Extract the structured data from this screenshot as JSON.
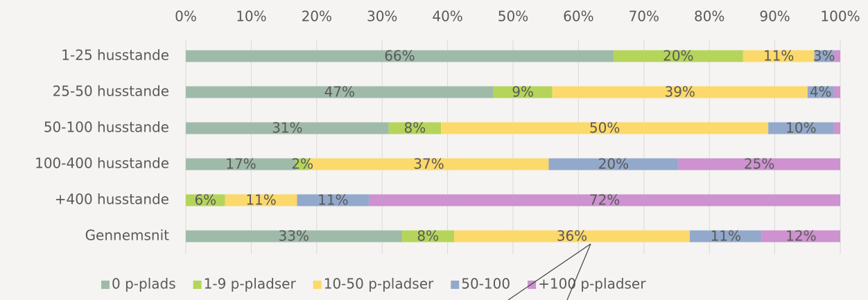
{
  "chart_data": {
    "type": "bar",
    "orientation": "horizontal",
    "stacking": "percent",
    "categories": [
      "1-25 husstande",
      "25-50 husstande",
      "50-100 husstande",
      "100-400 husstande",
      "+400 husstande",
      "Gennemsnit"
    ],
    "series": [
      {
        "name": "0 p-plads",
        "color": "#9fbaa9",
        "values": [
          66,
          47,
          31,
          17,
          0,
          33
        ],
        "value_labels": [
          "66%",
          "47%",
          "31%",
          "17%",
          null,
          "33%"
        ]
      },
      {
        "name": "1-9 p-pladser",
        "color": "#b5d55a",
        "values": [
          20,
          9,
          8,
          2,
          6,
          8
        ],
        "value_labels": [
          "20%",
          "9%",
          "8%",
          "2%",
          "6%",
          "8%"
        ]
      },
      {
        "name": "10-50 p-pladser",
        "color": "#fcd96b",
        "values": [
          11,
          39,
          50,
          37,
          11,
          36
        ],
        "value_labels": [
          "11%",
          "39%",
          "50%",
          "37%",
          "11%",
          "36%"
        ]
      },
      {
        "name": "50-100",
        "color": "#93a9cb",
        "values": [
          3,
          4,
          10,
          20,
          11,
          11
        ],
        "value_labels": [
          "3%",
          "4%",
          "10%",
          "20%",
          "11%",
          "11%"
        ]
      },
      {
        "name": "+100 p-pladser",
        "color": "#cd92cf",
        "values": [
          1,
          1,
          1,
          25,
          72,
          12
        ],
        "value_labels": [
          null,
          null,
          null,
          "25%",
          "72%",
          "12%"
        ]
      }
    ],
    "xlim": [
      0,
      100
    ],
    "xticks": [
      {
        "value": 0,
        "label": "0%"
      },
      {
        "value": 10,
        "label": "10%"
      },
      {
        "value": 20,
        "label": "20%"
      },
      {
        "value": 30,
        "label": "30%"
      },
      {
        "value": 40,
        "label": "40%"
      },
      {
        "value": 50,
        "label": "50%"
      },
      {
        "value": 60,
        "label": "60%"
      },
      {
        "value": 70,
        "label": "70%"
      },
      {
        "value": 80,
        "label": "80%"
      },
      {
        "value": 90,
        "label": "90%"
      },
      {
        "value": 100,
        "label": "100%"
      }
    ],
    "grid": true,
    "legend": "bottom"
  }
}
